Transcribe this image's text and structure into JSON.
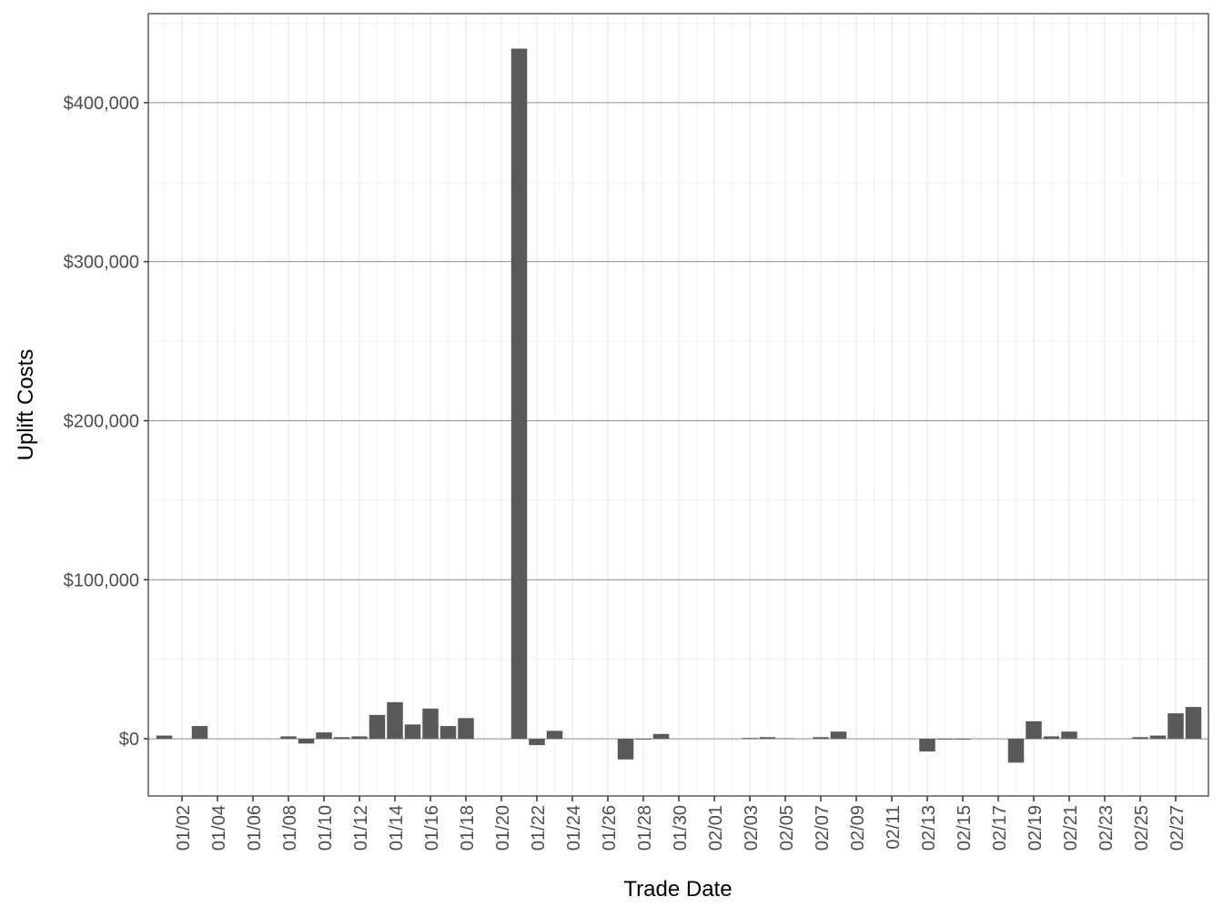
{
  "chart_data": {
    "type": "bar",
    "x_label": "Trade Date",
    "y_label": "Uplift Costs",
    "categories": [
      null,
      "01/02",
      null,
      "01/04",
      null,
      "01/06",
      null,
      "01/08",
      null,
      "01/10",
      null,
      "01/12",
      null,
      "01/14",
      null,
      "01/16",
      null,
      "01/18",
      null,
      "01/20",
      null,
      "01/22",
      null,
      "01/24",
      null,
      "01/26",
      null,
      "01/28",
      null,
      "01/30",
      null,
      "02/01",
      null,
      "02/03",
      null,
      "02/05",
      null,
      "02/07",
      null,
      "02/09",
      null,
      "02/11",
      null,
      "02/13",
      null,
      "02/15",
      null,
      "02/17",
      null,
      "02/19",
      null,
      "02/21",
      null,
      "02/23",
      null,
      "02/25",
      null,
      "02/27",
      null
    ],
    "values": [
      2000,
      0,
      8000,
      0,
      0,
      0,
      0,
      1500,
      -3000,
      4000,
      1000,
      1500,
      15000,
      23000,
      9000,
      19000,
      8000,
      13000,
      0,
      0,
      434000,
      -4000,
      5000,
      0,
      0,
      0,
      -13000,
      -500,
      3000,
      0,
      0,
      0,
      0,
      500,
      1000,
      300,
      0,
      1000,
      4500,
      0,
      0,
      0,
      0,
      -8000,
      -500,
      -500,
      0,
      0,
      -15000,
      11000,
      1500,
      4500,
      0,
      0,
      0,
      1000,
      2000,
      16000,
      20000
    ],
    "color": "#595959",
    "ylim": [
      -36000,
      456000
    ],
    "yticks": [
      {
        "value": 0,
        "label": "$0"
      },
      {
        "value": 100000,
        "label": "$100,000"
      },
      {
        "value": 200000,
        "label": "$200,000"
      },
      {
        "value": 300000,
        "label": "$300,000"
      },
      {
        "value": 400000,
        "label": "$400,000"
      }
    ],
    "grid": true
  }
}
